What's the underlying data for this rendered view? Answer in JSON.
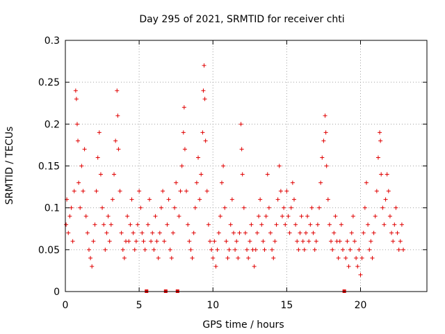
{
  "chart_data": {
    "type": "scatter",
    "title": "Day 295 of 2021, SRMTID for receiver chti",
    "xlabel": "GPS time / hours",
    "ylabel": "SRMTID / TECUs",
    "xlim": [
      0,
      24.5
    ],
    "ylim": [
      0,
      0.3
    ],
    "xticks": [
      0,
      5,
      10,
      15,
      20
    ],
    "xtick_labels": [
      "0",
      "5",
      "10",
      "15",
      "20"
    ],
    "yticks": [
      0,
      0.05,
      0.1,
      0.15,
      0.2,
      0.25,
      0.3
    ],
    "ytick_labels": [
      "0",
      "0.05",
      "0.1",
      "0.15",
      "0.2",
      "0.25",
      "0.3"
    ],
    "grid": true,
    "marker": "plus",
    "point_color": "#e00000",
    "gap_markers_x": [
      5.5,
      6.8,
      7.6,
      18.9
    ],
    "series": [
      {
        "points": [
          [
            0.05,
            0.08
          ],
          [
            0.1,
            0.11
          ],
          [
            0.2,
            0.07
          ],
          [
            0.3,
            0.09
          ],
          [
            0.4,
            0.1
          ],
          [
            0.5,
            0.06
          ],
          [
            0.6,
            0.12
          ],
          [
            0.7,
            0.24
          ],
          [
            0.75,
            0.23
          ],
          [
            0.8,
            0.2
          ],
          [
            0.85,
            0.18
          ],
          [
            0.9,
            0.13
          ],
          [
            1.0,
            0.1
          ],
          [
            1.1,
            0.15
          ],
          [
            1.2,
            0.12
          ],
          [
            1.3,
            0.17
          ],
          [
            1.4,
            0.09
          ],
          [
            1.5,
            0.07
          ],
          [
            1.6,
            0.05
          ],
          [
            1.7,
            0.04
          ],
          [
            1.8,
            0.03
          ],
          [
            1.9,
            0.06
          ],
          [
            2.0,
            0.08
          ],
          [
            2.1,
            0.12
          ],
          [
            2.2,
            0.16
          ],
          [
            2.3,
            0.19
          ],
          [
            2.4,
            0.14
          ],
          [
            2.5,
            0.1
          ],
          [
            2.6,
            0.08
          ],
          [
            2.7,
            0.05
          ],
          [
            2.8,
            0.07
          ],
          [
            2.9,
            0.09
          ],
          [
            3.0,
            0.06
          ],
          [
            3.1,
            0.08
          ],
          [
            3.2,
            0.11
          ],
          [
            3.3,
            0.14
          ],
          [
            3.4,
            0.18
          ],
          [
            3.5,
            0.24
          ],
          [
            3.55,
            0.21
          ],
          [
            3.6,
            0.17
          ],
          [
            3.7,
            0.12
          ],
          [
            3.8,
            0.07
          ],
          [
            3.9,
            0.05
          ],
          [
            4.0,
            0.04
          ],
          [
            4.1,
            0.06
          ],
          [
            4.2,
            0.09
          ],
          [
            4.3,
            0.06
          ],
          [
            4.4,
            0.08
          ],
          [
            4.5,
            0.11
          ],
          [
            4.6,
            0.07
          ],
          [
            4.7,
            0.05
          ],
          [
            4.8,
            0.06
          ],
          [
            4.9,
            0.08
          ],
          [
            5.0,
            0.12
          ],
          [
            5.1,
            0.1
          ],
          [
            5.2,
            0.07
          ],
          [
            5.3,
            0.06
          ],
          [
            5.4,
            0.05
          ],
          [
            5.6,
            0.08
          ],
          [
            5.7,
            0.11
          ],
          [
            5.8,
            0.06
          ],
          [
            5.9,
            0.07
          ],
          [
            6.0,
            0.05
          ],
          [
            6.1,
            0.09
          ],
          [
            6.2,
            0.06
          ],
          [
            6.3,
            0.04
          ],
          [
            6.4,
            0.07
          ],
          [
            6.5,
            0.1
          ],
          [
            6.6,
            0.12
          ],
          [
            6.7,
            0.06
          ],
          [
            6.9,
            0.08
          ],
          [
            7.0,
            0.11
          ],
          [
            7.1,
            0.05
          ],
          [
            7.2,
            0.04
          ],
          [
            7.3,
            0.07
          ],
          [
            7.4,
            0.1
          ],
          [
            7.5,
            0.13
          ],
          [
            7.7,
            0.09
          ],
          [
            7.8,
            0.12
          ],
          [
            7.9,
            0.15
          ],
          [
            8.0,
            0.19
          ],
          [
            8.05,
            0.22
          ],
          [
            8.1,
            0.17
          ],
          [
            8.2,
            0.12
          ],
          [
            8.3,
            0.08
          ],
          [
            8.4,
            0.06
          ],
          [
            8.5,
            0.05
          ],
          [
            8.6,
            0.04
          ],
          [
            8.7,
            0.07
          ],
          [
            8.8,
            0.1
          ],
          [
            8.9,
            0.13
          ],
          [
            9.0,
            0.16
          ],
          [
            9.1,
            0.11
          ],
          [
            9.2,
            0.14
          ],
          [
            9.3,
            0.19
          ],
          [
            9.35,
            0.24
          ],
          [
            9.4,
            0.27
          ],
          [
            9.45,
            0.23
          ],
          [
            9.5,
            0.18
          ],
          [
            9.6,
            0.12
          ],
          [
            9.7,
            0.08
          ],
          [
            9.8,
            0.06
          ],
          [
            9.9,
            0.05
          ],
          [
            10.0,
            0.04
          ],
          [
            10.1,
            0.06
          ],
          [
            10.2,
            0.03
          ],
          [
            10.3,
            0.05
          ],
          [
            10.4,
            0.07
          ],
          [
            10.5,
            0.09
          ],
          [
            10.6,
            0.13
          ],
          [
            10.7,
            0.15
          ],
          [
            10.8,
            0.1
          ],
          [
            10.9,
            0.06
          ],
          [
            11.0,
            0.04
          ],
          [
            11.1,
            0.05
          ],
          [
            11.2,
            0.08
          ],
          [
            11.3,
            0.11
          ],
          [
            11.4,
            0.07
          ],
          [
            11.5,
            0.05
          ],
          [
            11.6,
            0.06
          ],
          [
            11.7,
            0.04
          ],
          [
            11.8,
            0.07
          ],
          [
            11.9,
            0.2
          ],
          [
            11.95,
            0.17
          ],
          [
            12.0,
            0.14
          ],
          [
            12.1,
            0.1
          ],
          [
            12.2,
            0.07
          ],
          [
            12.3,
            0.05
          ],
          [
            12.4,
            0.04
          ],
          [
            12.5,
            0.06
          ],
          [
            12.6,
            0.08
          ],
          [
            12.7,
            0.05
          ],
          [
            12.8,
            0.03
          ],
          [
            12.9,
            0.05
          ],
          [
            13.0,
            0.07
          ],
          [
            13.1,
            0.09
          ],
          [
            13.2,
            0.11
          ],
          [
            13.3,
            0.08
          ],
          [
            13.4,
            0.06
          ],
          [
            13.5,
            0.05
          ],
          [
            13.6,
            0.09
          ],
          [
            13.7,
            0.14
          ],
          [
            13.8,
            0.1
          ],
          [
            13.9,
            0.07
          ],
          [
            14.0,
            0.05
          ],
          [
            14.1,
            0.04
          ],
          [
            14.2,
            0.06
          ],
          [
            14.3,
            0.08
          ],
          [
            14.4,
            0.11
          ],
          [
            14.5,
            0.15
          ],
          [
            14.6,
            0.12
          ],
          [
            14.7,
            0.09
          ],
          [
            14.8,
            0.1
          ],
          [
            14.9,
            0.08
          ],
          [
            15.0,
            0.12
          ],
          [
            15.1,
            0.09
          ],
          [
            15.2,
            0.07
          ],
          [
            15.3,
            0.1
          ],
          [
            15.4,
            0.13
          ],
          [
            15.5,
            0.11
          ],
          [
            15.6,
            0.08
          ],
          [
            15.7,
            0.06
          ],
          [
            15.8,
            0.05
          ],
          [
            15.9,
            0.07
          ],
          [
            16.0,
            0.09
          ],
          [
            16.1,
            0.06
          ],
          [
            16.2,
            0.05
          ],
          [
            16.3,
            0.07
          ],
          [
            16.4,
            0.09
          ],
          [
            16.5,
            0.06
          ],
          [
            16.6,
            0.08
          ],
          [
            16.7,
            0.1
          ],
          [
            16.8,
            0.07
          ],
          [
            16.9,
            0.05
          ],
          [
            17.0,
            0.06
          ],
          [
            17.1,
            0.08
          ],
          [
            17.2,
            0.1
          ],
          [
            17.3,
            0.13
          ],
          [
            17.4,
            0.16
          ],
          [
            17.5,
            0.18
          ],
          [
            17.6,
            0.21
          ],
          [
            17.65,
            0.19
          ],
          [
            17.7,
            0.15
          ],
          [
            17.8,
            0.11
          ],
          [
            17.9,
            0.08
          ],
          [
            18.0,
            0.06
          ],
          [
            18.1,
            0.05
          ],
          [
            18.2,
            0.07
          ],
          [
            18.3,
            0.09
          ],
          [
            18.4,
            0.06
          ],
          [
            18.5,
            0.04
          ],
          [
            18.6,
            0.06
          ],
          [
            18.7,
            0.08
          ],
          [
            18.8,
            0.05
          ],
          [
            19.0,
            0.04
          ],
          [
            19.1,
            0.06
          ],
          [
            19.2,
            0.03
          ],
          [
            19.3,
            0.05
          ],
          [
            19.4,
            0.07
          ],
          [
            19.5,
            0.09
          ],
          [
            19.6,
            0.06
          ],
          [
            19.7,
            0.04
          ],
          [
            19.8,
            0.03
          ],
          [
            19.9,
            0.05
          ],
          [
            20.0,
            0.02
          ],
          [
            20.1,
            0.04
          ],
          [
            20.2,
            0.07
          ],
          [
            20.3,
            0.1
          ],
          [
            20.4,
            0.13
          ],
          [
            20.5,
            0.08
          ],
          [
            20.6,
            0.05
          ],
          [
            20.7,
            0.06
          ],
          [
            20.8,
            0.04
          ],
          [
            20.9,
            0.07
          ],
          [
            21.0,
            0.09
          ],
          [
            21.1,
            0.12
          ],
          [
            21.2,
            0.16
          ],
          [
            21.3,
            0.19
          ],
          [
            21.35,
            0.18
          ],
          [
            21.4,
            0.14
          ],
          [
            21.5,
            0.1
          ],
          [
            21.6,
            0.08
          ],
          [
            21.7,
            0.11
          ],
          [
            21.8,
            0.14
          ],
          [
            21.9,
            0.12
          ],
          [
            22.0,
            0.09
          ],
          [
            22.1,
            0.07
          ],
          [
            22.2,
            0.06
          ],
          [
            22.3,
            0.08
          ],
          [
            22.4,
            0.1
          ],
          [
            22.5,
            0.07
          ],
          [
            22.6,
            0.05
          ],
          [
            22.7,
            0.06
          ],
          [
            22.8,
            0.08
          ],
          [
            22.9,
            0.05
          ]
        ]
      }
    ]
  }
}
